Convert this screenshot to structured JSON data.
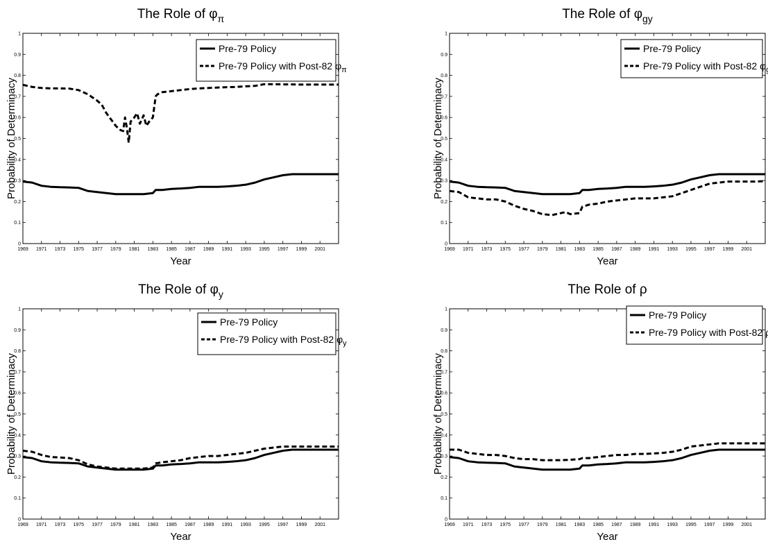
{
  "chart_data": [
    {
      "type": "line",
      "title": "The Role of ",
      "title_symbol": "φ",
      "title_sub": "π",
      "xlabel": "Year",
      "ylabel": "Probability of Determinacy",
      "xlim": [
        1969,
        2003
      ],
      "ylim": [
        0,
        1
      ],
      "xticks": [
        "1969",
        "1971",
        "1973",
        "1975",
        "1977",
        "1979",
        "1981",
        "1983",
        "1985",
        "1987",
        "1989",
        "1991",
        "1993",
        "1995",
        "1997",
        "1999",
        "2001"
      ],
      "yticks": [
        "0",
        "0.1",
        "0.2",
        "0.3",
        "0.4",
        "0.5",
        "0.6",
        "0.7",
        "0.8",
        "0.9",
        "1"
      ],
      "legend_position": "top-right",
      "series": [
        {
          "name": "Pre-79 Policy",
          "style": "solid",
          "x": [
            1969,
            1970,
            1971,
            1972,
            1973,
            1974,
            1975,
            1976,
            1977,
            1978,
            1979,
            1980,
            1981,
            1982,
            1983,
            1983.3,
            1984,
            1985,
            1986,
            1987,
            1988,
            1989,
            1990,
            1991,
            1992,
            1993,
            1994,
            1995,
            1996,
            1997,
            1998,
            1999,
            2000,
            2001,
            2002,
            2003
          ],
          "y": [
            0.295,
            0.29,
            0.275,
            0.27,
            0.268,
            0.267,
            0.265,
            0.25,
            0.245,
            0.24,
            0.235,
            0.235,
            0.235,
            0.235,
            0.24,
            0.255,
            0.255,
            0.26,
            0.262,
            0.265,
            0.27,
            0.27,
            0.27,
            0.272,
            0.275,
            0.28,
            0.29,
            0.305,
            0.315,
            0.325,
            0.33,
            0.33,
            0.33,
            0.33,
            0.33,
            0.33
          ]
        },
        {
          "name": "Pre-79 Policy with Post-82 ",
          "name_symbol": "φ",
          "name_sub": "π",
          "style": "dashed",
          "x": [
            1969,
            1970,
            1971,
            1972,
            1973,
            1974,
            1975,
            1976,
            1977,
            1977.5,
            1978,
            1978.5,
            1979,
            1979.5,
            1979.8,
            1980,
            1980.2,
            1980.4,
            1980.6,
            1981,
            1981.3,
            1981.6,
            1982,
            1982.3,
            1982.6,
            1983,
            1983.3,
            1983.5,
            1984,
            1985,
            1986,
            1987,
            1988,
            1989,
            1990,
            1991,
            1992,
            1993,
            1994,
            1995,
            1996,
            1997,
            1998,
            1999,
            2000,
            2001,
            2002,
            2003
          ],
          "y": [
            0.755,
            0.745,
            0.74,
            0.738,
            0.738,
            0.737,
            0.73,
            0.71,
            0.68,
            0.66,
            0.62,
            0.59,
            0.56,
            0.54,
            0.535,
            0.6,
            0.55,
            0.48,
            0.58,
            0.6,
            0.62,
            0.57,
            0.61,
            0.56,
            0.58,
            0.6,
            0.7,
            0.71,
            0.72,
            0.725,
            0.73,
            0.735,
            0.738,
            0.74,
            0.742,
            0.744,
            0.745,
            0.748,
            0.75,
            0.758,
            0.758,
            0.757,
            0.757,
            0.756,
            0.756,
            0.756,
            0.756,
            0.756
          ]
        }
      ]
    },
    {
      "type": "line",
      "title": "The Role of ",
      "title_symbol": "φ",
      "title_sub": "gy",
      "xlabel": "Year",
      "ylabel": "Probability of Determinacy",
      "xlim": [
        1969,
        2003
      ],
      "ylim": [
        0,
        1
      ],
      "xticks": [
        "1969",
        "1971",
        "1973",
        "1975",
        "1977",
        "1979",
        "1981",
        "1983",
        "1985",
        "1987",
        "1989",
        "1991",
        "1993",
        "1995",
        "1997",
        "1999",
        "2001"
      ],
      "yticks": [
        "0",
        "0.1",
        "0.2",
        "0.3",
        "0.4",
        "0.5",
        "0.6",
        "0.7",
        "0.8",
        "0.9",
        "1"
      ],
      "legend_position": "top-right",
      "series": [
        {
          "name": "Pre-79 Policy",
          "style": "solid",
          "x": [
            1969,
            1970,
            1971,
            1972,
            1973,
            1974,
            1975,
            1976,
            1977,
            1978,
            1979,
            1980,
            1981,
            1982,
            1983,
            1983.3,
            1984,
            1985,
            1986,
            1987,
            1988,
            1989,
            1990,
            1991,
            1992,
            1993,
            1994,
            1995,
            1996,
            1997,
            1998,
            1999,
            2000,
            2001,
            2002,
            2003
          ],
          "y": [
            0.295,
            0.29,
            0.275,
            0.27,
            0.268,
            0.267,
            0.265,
            0.25,
            0.245,
            0.24,
            0.235,
            0.235,
            0.235,
            0.235,
            0.24,
            0.255,
            0.255,
            0.26,
            0.262,
            0.265,
            0.27,
            0.27,
            0.27,
            0.272,
            0.275,
            0.28,
            0.29,
            0.305,
            0.315,
            0.325,
            0.33,
            0.33,
            0.33,
            0.33,
            0.33,
            0.33
          ]
        },
        {
          "name": "Pre-79 Policy with Post-82 ",
          "name_symbol": "φ",
          "name_sub": "gy",
          "style": "dashed",
          "x": [
            1969,
            1970,
            1971,
            1972,
            1973,
            1974,
            1975,
            1976,
            1977,
            1978,
            1979,
            1979.5,
            1980,
            1980.5,
            1981,
            1981.5,
            1982,
            1983,
            1983.3,
            1984,
            1985,
            1986,
            1987,
            1988,
            1989,
            1990,
            1991,
            1992,
            1993,
            1994,
            1995,
            1996,
            1997,
            1998,
            1999,
            2000,
            2001,
            2002,
            2003
          ],
          "y": [
            0.25,
            0.245,
            0.22,
            0.215,
            0.21,
            0.21,
            0.2,
            0.18,
            0.165,
            0.155,
            0.14,
            0.138,
            0.135,
            0.14,
            0.145,
            0.15,
            0.14,
            0.145,
            0.175,
            0.185,
            0.19,
            0.2,
            0.205,
            0.21,
            0.215,
            0.215,
            0.215,
            0.22,
            0.225,
            0.24,
            0.255,
            0.27,
            0.285,
            0.29,
            0.295,
            0.295,
            0.295,
            0.295,
            0.297
          ]
        }
      ]
    },
    {
      "type": "line",
      "title": "The Role of ",
      "title_symbol": "φ",
      "title_sub": "y",
      "xlabel": "Year",
      "ylabel": "Probability of Determinacy",
      "xlim": [
        1969,
        2003
      ],
      "ylim": [
        0,
        1
      ],
      "xticks": [
        "1969",
        "1971",
        "1973",
        "1975",
        "1977",
        "1979",
        "1981",
        "1983",
        "1985",
        "1987",
        "1989",
        "1991",
        "1993",
        "1995",
        "1997",
        "1999",
        "2001"
      ],
      "yticks": [
        "0",
        "0.1",
        "0.2",
        "0.3",
        "0.4",
        "0.5",
        "0.6",
        "0.7",
        "0.8",
        "0.9",
        "1"
      ],
      "legend_position": "top-right",
      "series": [
        {
          "name": "Pre-79 Policy",
          "style": "solid",
          "x": [
            1969,
            1970,
            1971,
            1972,
            1973,
            1974,
            1975,
            1976,
            1977,
            1978,
            1979,
            1980,
            1981,
            1982,
            1983,
            1983.3,
            1984,
            1985,
            1986,
            1987,
            1988,
            1989,
            1990,
            1991,
            1992,
            1993,
            1994,
            1995,
            1996,
            1997,
            1998,
            1999,
            2000,
            2001,
            2002,
            2003
          ],
          "y": [
            0.295,
            0.29,
            0.275,
            0.27,
            0.268,
            0.267,
            0.265,
            0.25,
            0.245,
            0.24,
            0.235,
            0.235,
            0.235,
            0.235,
            0.24,
            0.255,
            0.255,
            0.26,
            0.262,
            0.265,
            0.27,
            0.27,
            0.27,
            0.272,
            0.275,
            0.28,
            0.29,
            0.305,
            0.315,
            0.325,
            0.33,
            0.33,
            0.33,
            0.33,
            0.33,
            0.33
          ]
        },
        {
          "name": "Pre-79 Policy with Post-82 ",
          "name_symbol": "φ",
          "name_sub": "y",
          "style": "dashed",
          "x": [
            1969,
            1970,
            1971,
            1972,
            1973,
            1974,
            1975,
            1976,
            1977,
            1978,
            1979,
            1980,
            1981,
            1982,
            1983,
            1983.3,
            1984,
            1985,
            1986,
            1987,
            1988,
            1989,
            1990,
            1991,
            1992,
            1993,
            1994,
            1995,
            1996,
            1997,
            1998,
            1999,
            2000,
            2001,
            2002,
            2003
          ],
          "y": [
            0.325,
            0.32,
            0.305,
            0.295,
            0.293,
            0.29,
            0.28,
            0.26,
            0.25,
            0.245,
            0.24,
            0.24,
            0.24,
            0.24,
            0.245,
            0.265,
            0.27,
            0.275,
            0.28,
            0.29,
            0.295,
            0.3,
            0.3,
            0.305,
            0.31,
            0.315,
            0.325,
            0.335,
            0.34,
            0.345,
            0.345,
            0.345,
            0.345,
            0.345,
            0.345,
            0.345
          ]
        }
      ]
    },
    {
      "type": "line",
      "title": "The Role of ",
      "title_symbol": "ρ",
      "title_sub": "",
      "xlabel": "Year",
      "ylabel": "Probability of Determinacy",
      "xlim": [
        1969,
        2003
      ],
      "ylim": [
        0,
        1
      ],
      "xticks": [
        "1969",
        "1971",
        "1973",
        "1975",
        "1977",
        "1979",
        "1981",
        "1983",
        "1985",
        "1987",
        "1989",
        "1991",
        "1993",
        "1995",
        "1997",
        "1999",
        "2001"
      ],
      "yticks": [
        "0",
        "0.1",
        "0.2",
        "0.3",
        "0.4",
        "0.5",
        "0.6",
        "0.7",
        "0.8",
        "0.9",
        "1"
      ],
      "legend_position": "top-right",
      "series": [
        {
          "name": "Pre-79 Policy",
          "style": "solid",
          "x": [
            1969,
            1970,
            1971,
            1972,
            1973,
            1974,
            1975,
            1976,
            1977,
            1978,
            1979,
            1980,
            1981,
            1982,
            1983,
            1983.3,
            1984,
            1985,
            1986,
            1987,
            1988,
            1989,
            1990,
            1991,
            1992,
            1993,
            1994,
            1995,
            1996,
            1997,
            1998,
            1999,
            2000,
            2001,
            2002,
            2003
          ],
          "y": [
            0.295,
            0.29,
            0.275,
            0.27,
            0.268,
            0.267,
            0.265,
            0.25,
            0.245,
            0.24,
            0.235,
            0.235,
            0.235,
            0.235,
            0.24,
            0.255,
            0.255,
            0.26,
            0.262,
            0.265,
            0.27,
            0.27,
            0.27,
            0.272,
            0.275,
            0.28,
            0.29,
            0.305,
            0.315,
            0.325,
            0.33,
            0.33,
            0.33,
            0.33,
            0.33,
            0.33
          ]
        },
        {
          "name": "Pre-79 Policy with Post-82 ",
          "name_symbol": "ρ",
          "name_sub": "",
          "style": "dashed",
          "x": [
            1969,
            1970,
            1971,
            1972,
            1973,
            1974,
            1975,
            1976,
            1977,
            1978,
            1979,
            1980,
            1981,
            1982,
            1983,
            1983.3,
            1984,
            1985,
            1986,
            1987,
            1988,
            1989,
            1990,
            1991,
            1992,
            1993,
            1994,
            1995,
            1996,
            1997,
            1998,
            1999,
            2000,
            2001,
            2002,
            2003
          ],
          "y": [
            0.33,
            0.33,
            0.315,
            0.31,
            0.305,
            0.305,
            0.3,
            0.29,
            0.285,
            0.285,
            0.28,
            0.28,
            0.28,
            0.282,
            0.285,
            0.29,
            0.29,
            0.295,
            0.3,
            0.305,
            0.305,
            0.31,
            0.31,
            0.312,
            0.315,
            0.32,
            0.33,
            0.345,
            0.35,
            0.355,
            0.36,
            0.36,
            0.36,
            0.36,
            0.36,
            0.36
          ]
        }
      ]
    }
  ]
}
